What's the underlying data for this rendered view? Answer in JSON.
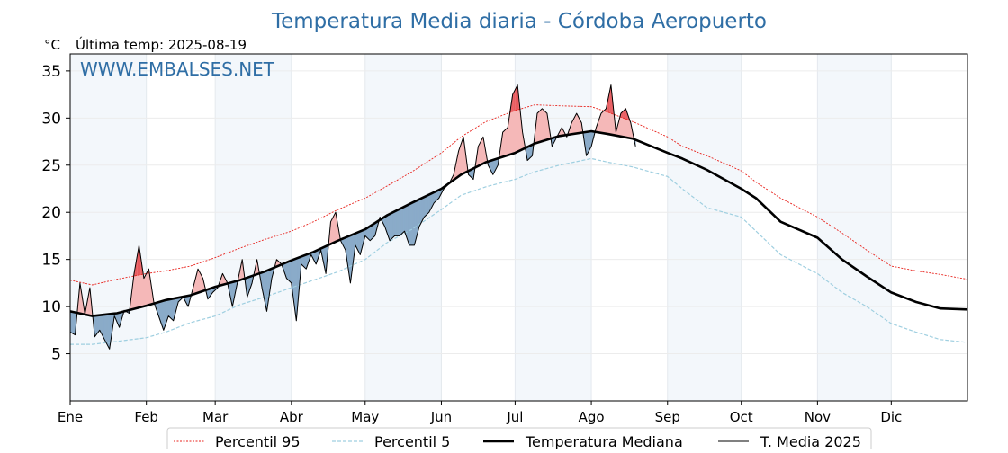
{
  "chart_data": {
    "type": "line",
    "title": "Temperatura Media diaria - Córdoba Aeropuerto",
    "unit_label": "°C",
    "subtitle": "Última temp: 2025-08-19",
    "watermark": "WWW.EMBALSES.NET",
    "x_tick_labels": [
      "Ene",
      "Feb",
      "Mar",
      "Abr",
      "May",
      "Jun",
      "Jul",
      "Ago",
      "Sep",
      "Oct",
      "Nov",
      "Dic"
    ],
    "y_ticks": [
      5,
      10,
      15,
      20,
      25,
      30,
      35
    ],
    "ylim": [
      0,
      36.8
    ],
    "xlim": [
      1,
      366
    ],
    "grid": true,
    "legend_position": "bottom-center",
    "colors": {
      "title": "#2f6ea5",
      "p95": "#e8231d",
      "p5": "#9fcfe0",
      "median": "#000000",
      "current": "#000000",
      "above_median": "#f5b8b8",
      "above_p95": "#e8585c",
      "below_median": "#8aabc9",
      "month_band": "#f3f7fb"
    },
    "series": [
      {
        "name": "Percentil 95",
        "style": "dotted-red",
        "x": [
          1,
          10,
          20,
          32,
          40,
          50,
          60,
          70,
          80,
          91,
          100,
          110,
          121,
          130,
          140,
          152,
          160,
          170,
          182,
          190,
          200,
          213,
          220,
          230,
          244,
          250,
          260,
          274,
          280,
          290,
          305,
          315,
          325,
          335,
          345,
          355,
          366
        ],
        "y": [
          12.8,
          12.3,
          12.9,
          13.5,
          13.8,
          14.3,
          15.2,
          16.2,
          17.1,
          18.0,
          19.0,
          20.3,
          21.5,
          22.8,
          24.3,
          26.3,
          28.0,
          29.6,
          30.8,
          31.4,
          31.3,
          31.2,
          30.6,
          29.6,
          28.0,
          27.0,
          26.0,
          24.4,
          23.2,
          21.5,
          19.5,
          17.8,
          16.0,
          14.3,
          13.8,
          13.4,
          12.9
        ]
      },
      {
        "name": "Percentil 5",
        "style": "dashed-lightblue",
        "x": [
          1,
          10,
          20,
          32,
          40,
          50,
          60,
          70,
          80,
          91,
          100,
          110,
          121,
          130,
          140,
          152,
          160,
          170,
          182,
          190,
          200,
          213,
          220,
          230,
          244,
          250,
          260,
          274,
          280,
          290,
          305,
          315,
          325,
          335,
          345,
          355,
          366
        ],
        "y": [
          6.0,
          6.0,
          6.3,
          6.7,
          7.3,
          8.3,
          9.0,
          10.2,
          11.0,
          12.0,
          12.8,
          13.7,
          15.0,
          16.8,
          18.2,
          20.3,
          21.8,
          22.7,
          23.5,
          24.3,
          25.0,
          25.7,
          25.3,
          24.8,
          23.8,
          22.5,
          20.5,
          19.5,
          18.0,
          15.5,
          13.5,
          11.5,
          10.0,
          8.2,
          7.3,
          6.5,
          6.2
        ]
      },
      {
        "name": "Temperatura Mediana",
        "style": "thick-black",
        "x": [
          1,
          10,
          20,
          32,
          40,
          50,
          60,
          70,
          80,
          91,
          100,
          110,
          121,
          130,
          140,
          152,
          160,
          170,
          182,
          190,
          200,
          213,
          220,
          230,
          244,
          250,
          260,
          274,
          280,
          290,
          305,
          315,
          325,
          335,
          345,
          355,
          366
        ],
        "y": [
          9.5,
          9.0,
          9.3,
          10.1,
          10.7,
          11.2,
          12.1,
          12.8,
          13.7,
          14.9,
          15.8,
          17.0,
          18.2,
          19.7,
          21.0,
          22.5,
          24.0,
          25.3,
          26.3,
          27.3,
          28.1,
          28.6,
          28.3,
          27.8,
          26.3,
          25.7,
          24.5,
          22.5,
          21.5,
          19.0,
          17.3,
          15.0,
          13.2,
          11.5,
          10.5,
          9.8,
          9.7
        ]
      },
      {
        "name": "T. Media 2025",
        "style": "thin-black",
        "x": [
          1,
          3,
          5,
          7,
          9,
          11,
          13,
          15,
          17,
          19,
          21,
          23,
          25,
          27,
          29,
          31,
          33,
          35,
          37,
          39,
          41,
          43,
          45,
          47,
          49,
          51,
          53,
          55,
          57,
          59,
          61,
          63,
          65,
          67,
          69,
          71,
          73,
          75,
          77,
          79,
          81,
          83,
          85,
          87,
          89,
          91,
          93,
          95,
          97,
          99,
          101,
          103,
          105,
          107,
          109,
          111,
          113,
          115,
          117,
          119,
          121,
          123,
          125,
          127,
          129,
          131,
          133,
          135,
          137,
          139,
          141,
          143,
          145,
          147,
          149,
          151,
          153,
          155,
          157,
          159,
          161,
          163,
          165,
          167,
          169,
          171,
          173,
          175,
          177,
          179,
          181,
          183,
          185,
          187,
          189,
          191,
          193,
          195,
          197,
          199,
          201,
          203,
          205,
          207,
          209,
          211,
          213,
          215,
          217,
          219,
          221,
          223,
          225,
          227,
          229,
          231
        ],
        "y": [
          7.3,
          7.0,
          12.5,
          9.2,
          12.0,
          6.8,
          7.5,
          6.5,
          5.5,
          9.0,
          7.8,
          9.6,
          9.3,
          13.5,
          16.5,
          13.0,
          14.0,
          10.5,
          9.0,
          7.5,
          9.0,
          8.5,
          10.5,
          11.0,
          10.0,
          12.0,
          14.0,
          13.0,
          10.8,
          11.5,
          12.0,
          13.5,
          12.5,
          10.0,
          12.5,
          15.0,
          11.0,
          12.5,
          15.0,
          12.0,
          9.5,
          13.0,
          15.0,
          14.5,
          13.0,
          12.5,
          8.5,
          14.5,
          14.0,
          15.5,
          14.5,
          16.0,
          13.5,
          19.0,
          20.0,
          17.0,
          16.0,
          12.5,
          16.5,
          15.5,
          17.5,
          17.0,
          17.5,
          19.5,
          18.5,
          17.0,
          17.5,
          17.5,
          18.0,
          16.5,
          16.5,
          18.5,
          19.5,
          20.0,
          21.0,
          21.5,
          22.5,
          23.0,
          24.0,
          26.5,
          28.0,
          24.0,
          23.5,
          27.0,
          28.0,
          25.0,
          24.0,
          25.0,
          28.5,
          29.0,
          32.5,
          33.5,
          28.5,
          25.5,
          26.0,
          30.5,
          31.0,
          30.5,
          27.0,
          28.0,
          29.0,
          28.0,
          29.5,
          30.5,
          29.5,
          26.0,
          27.0,
          29.0,
          30.5,
          31.0,
          33.5,
          28.5,
          30.5,
          31.0,
          29.5,
          27.0
        ]
      }
    ]
  }
}
